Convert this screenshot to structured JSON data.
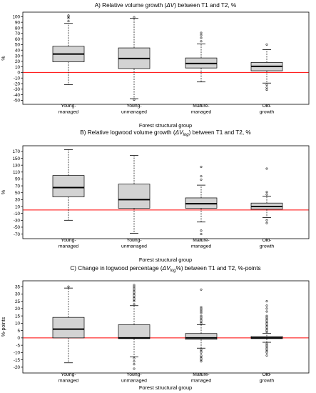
{
  "figure": {
    "x_title": "Forest structural group",
    "categories": [
      "Young-\nmanaged",
      "Young-\nunmanaged",
      "Mature-\nmanaged",
      "Old-\ngrowth"
    ],
    "colors": {
      "box_fill": "#d3d3d3",
      "median": "#000000",
      "zero_line": "#ff0000",
      "axis": "#000000"
    }
  },
  "chart_data": [
    {
      "type": "box",
      "title_parts": [
        "A) Relative volume growth (",
        "ΔV",
        ") between T1 and T2, %"
      ],
      "ylabel": "%",
      "ylim": [
        -52,
        103
      ],
      "yticks": [
        -50,
        -40,
        -30,
        -20,
        -10,
        0,
        10,
        20,
        30,
        40,
        50,
        60,
        70,
        80,
        90,
        100
      ],
      "reference_line": 0,
      "boxes": [
        {
          "category": "Young-managed",
          "whisker_low": -22,
          "q1": 19,
          "median": 33,
          "q3": 47,
          "whisker_high": 88,
          "outliers": [
            92,
            97,
            100,
            102
          ]
        },
        {
          "category": "Young-unmanaged",
          "whisker_low": -47,
          "q1": 7,
          "median": 25,
          "q3": 44,
          "whisker_high": 97,
          "outliers": [
            99,
            -49
          ]
        },
        {
          "category": "Mature-managed",
          "whisker_low": -17,
          "q1": 8,
          "median": 16,
          "q3": 26,
          "whisker_high": 51,
          "outliers": [
            56,
            62,
            67,
            71
          ]
        },
        {
          "category": "Old-growth",
          "whisker_low": -19,
          "q1": 3,
          "median": 11,
          "q3": 18,
          "whisker_high": 41,
          "outliers": [
            50,
            -22,
            -27,
            -31
          ]
        }
      ]
    },
    {
      "type": "box",
      "title_parts": [
        "B) Relative logwood volume growth (",
        "ΔV",
        "log",
        ") between T1 and T2, %"
      ],
      "ylabel": "%",
      "ylim": [
        -75,
        178
      ],
      "yticks": [
        -70,
        -50,
        -30,
        -10,
        10,
        30,
        50,
        70,
        90,
        110,
        130,
        150,
        170
      ],
      "reference_line": 0,
      "boxes": [
        {
          "category": "Young-managed",
          "whisker_low": -30,
          "q1": 38,
          "median": 65,
          "q3": 100,
          "whisker_high": 175,
          "outliers": []
        },
        {
          "category": "Young-unmanaged",
          "whisker_low": -68,
          "q1": 5,
          "median": 30,
          "q3": 75,
          "whisker_high": 158,
          "outliers": []
        },
        {
          "category": "Mature-managed",
          "whisker_low": -35,
          "q1": 5,
          "median": 18,
          "q3": 35,
          "whisker_high": 72,
          "outliers": [
            88,
            98,
            125,
            -60,
            -70
          ]
        },
        {
          "category": "Old-growth",
          "whisker_low": -22,
          "q1": 2,
          "median": 10,
          "q3": 20,
          "whisker_high": 40,
          "outliers": [
            45,
            52,
            120,
            -30,
            -38
          ]
        }
      ]
    },
    {
      "type": "box",
      "title_parts": [
        "C) Change in logwood percentage (",
        "ΔV",
        "log",
        "%) between T1 and T2, %-points"
      ],
      "ylabel": "%-points",
      "ylim": [
        -22,
        37
      ],
      "yticks": [
        -20,
        -15,
        -10,
        -5,
        0,
        5,
        10,
        15,
        20,
        25,
        30,
        35
      ],
      "reference_line": 0,
      "boxes": [
        {
          "category": "Young-managed",
          "whisker_low": -17,
          "q1": 0,
          "median": 6,
          "q3": 14,
          "whisker_high": 34,
          "outliers": [
            35
          ]
        },
        {
          "category": "Young-unmanaged",
          "whisker_low": -13,
          "q1": -0.5,
          "median": 0,
          "q3": 9,
          "whisker_high": 22,
          "outliers": [
            23,
            25,
            26,
            27,
            28,
            29,
            30,
            31,
            32,
            33,
            34,
            35,
            36,
            -14,
            -16,
            -18,
            -21
          ]
        },
        {
          "category": "Mature-managed",
          "whisker_low": -7,
          "q1": -1,
          "median": 0,
          "q3": 3,
          "whisker_high": 9,
          "outliers": [
            10,
            11,
            12,
            13,
            14,
            15,
            17,
            18,
            19,
            20,
            21,
            33,
            -8,
            -9,
            -10,
            -12,
            -13,
            -14,
            -15,
            -16
          ]
        },
        {
          "category": "Old-growth",
          "whisker_low": -3,
          "q1": -0.5,
          "median": 0,
          "q3": 1,
          "whisker_high": 3,
          "outliers": [
            4,
            5,
            6,
            7,
            8,
            9,
            10,
            11,
            12,
            13,
            14,
            15,
            18,
            20,
            22,
            25,
            -4,
            -5,
            -6,
            -7,
            -8,
            -9,
            -10,
            -12
          ]
        }
      ]
    }
  ]
}
